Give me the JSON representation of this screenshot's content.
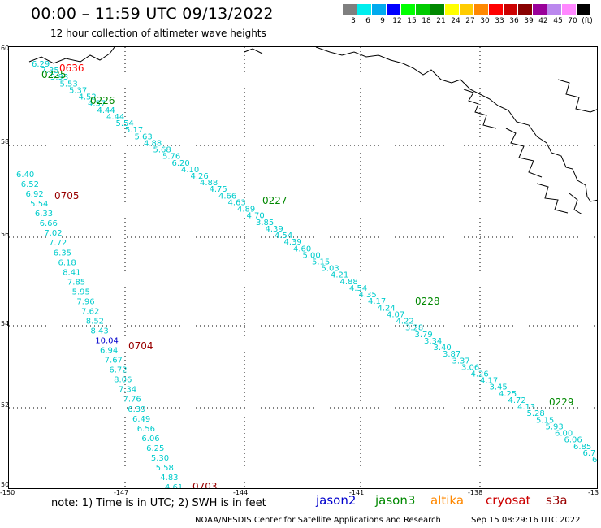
{
  "title": "00:00 – 11:59 UTC 09/13/2022",
  "subtitle": "12 hour collection of altimeter wave heights",
  "scale": {
    "labels": [
      "3",
      "6",
      "9",
      "12",
      "15",
      "18",
      "21",
      "24",
      "27",
      "30",
      "33",
      "36",
      "39",
      "42",
      "45",
      "70",
      "(ft)"
    ],
    "colors": [
      "#7f7f7f",
      "#00eeee",
      "#00aaee",
      "#0000ff",
      "#00ff00",
      "#00cc00",
      "#008800",
      "#ffff00",
      "#ffcc00",
      "#ff8800",
      "#ff0000",
      "#cc0000",
      "#880000",
      "#990099",
      "#bb88ee",
      "#ff88ff",
      "#000000"
    ]
  },
  "lat_labels": [
    "60",
    "58",
    "56",
    "54",
    "52",
    "50"
  ],
  "lon_labels": [
    "-150",
    "-147",
    "-144",
    "-141",
    "-138",
    "-13"
  ],
  "note": "note: 1) Time is in UTC; 2) SWH is in feet",
  "satellites": [
    {
      "name": "jason2",
      "color": "#0000cc"
    },
    {
      "name": "jason3",
      "color": "#008800"
    },
    {
      "name": "altika",
      "color": "#ff8800"
    },
    {
      "name": "cryosat",
      "color": "#cc0000"
    },
    {
      "name": "s3a",
      "color": "#990000"
    }
  ],
  "footer_left": "NOAA/NESDIS Center for Satellite Applications and Research",
  "footer_right": "Sep 15 08:29:16 UTC 2022",
  "times": [
    {
      "label": "0636",
      "color": "#ff0000"
    },
    {
      "label": "0225",
      "color": "#008800"
    },
    {
      "label": "0226",
      "color": "#008800"
    },
    {
      "label": "0227",
      "color": "#008800"
    },
    {
      "label": "0228",
      "color": "#008800"
    },
    {
      "label": "0229",
      "color": "#008800"
    },
    {
      "label": "0705",
      "color": "#990000"
    },
    {
      "label": "0704",
      "color": "#990000"
    },
    {
      "label": "0703",
      "color": "#990000"
    }
  ],
  "track_a": [
    "6.29",
    "7.35",
    "5.93",
    "5.53",
    "5.37",
    "4.52",
    "4.57",
    "4.44",
    "4.44",
    "5.54",
    "5.17",
    "5.63",
    "4.88",
    "5.68",
    "5.76",
    "6.20",
    "4.10",
    "4.26",
    "4.88",
    "4.75",
    "4.66",
    "4.63",
    "4.89",
    "4.70",
    "3.85",
    "4.39",
    "4.54",
    "4.39",
    "4.60",
    "5.00",
    "5.15",
    "5.03",
    "4.21",
    "4.88",
    "4.54",
    "4.35",
    "4.17",
    "4.24",
    "4.07",
    "4.22",
    "3.28",
    "3.79",
    "3.34",
    "3.40",
    "3.87",
    "3.37",
    "3.06",
    "4.26",
    "4.17",
    "3.45",
    "4.25",
    "4.72",
    "4.13",
    "5.28",
    "5.15",
    "5.93",
    "6.00",
    "6.06",
    "6.85",
    "6.7",
    "6"
  ],
  "track_b": [
    "6.40",
    "6.52",
    "6.92",
    "5.54",
    "6.33",
    "6.66",
    "7.02",
    "7.72",
    "6.35",
    "6.18",
    "8.41",
    "7.85",
    "5.95",
    "7.96",
    "7.62",
    "8.52",
    "8.43",
    "10.04",
    "6.94",
    "7.67",
    "6.72",
    "8.06",
    "7.34",
    "7.76",
    "6.39",
    "6.49",
    "6.56",
    "6.06",
    "6.25",
    "5.30",
    "5.58",
    "4.83",
    "4.61"
  ]
}
